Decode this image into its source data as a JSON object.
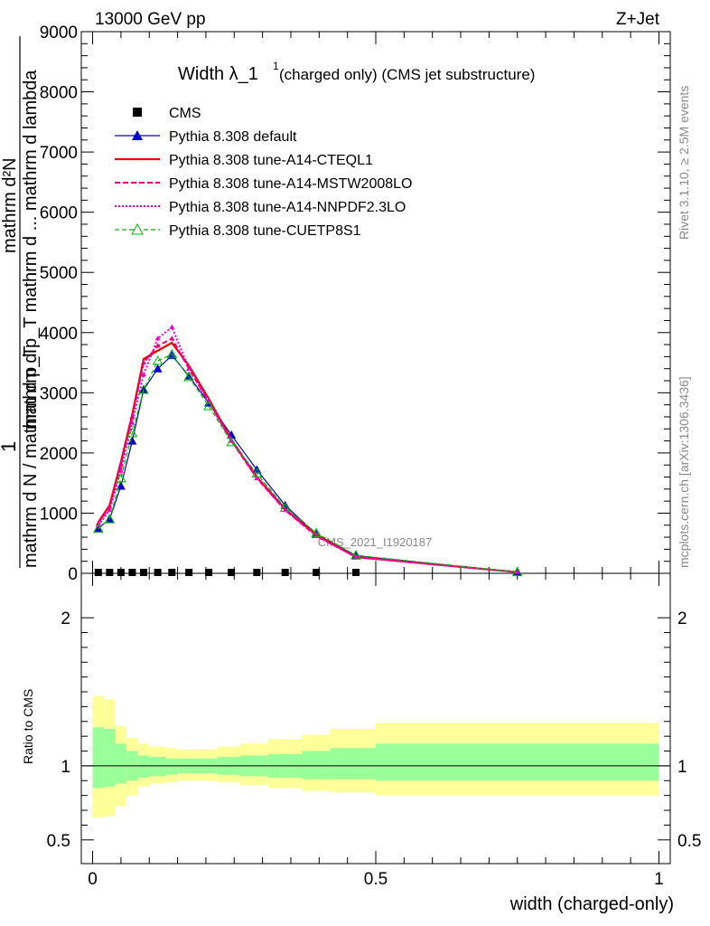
{
  "header": {
    "energy_label": "13000 GeV pp",
    "process_label": "Z+Jet",
    "title_main": "Width λ_1",
    "title_sup": "1",
    "title_rest": " (charged only) (CMS jet substructure)",
    "right_label_top": "Rivet 3.1.10, ≥ 2.5M events",
    "right_label_bottom": "mcplots.cern.ch [arXiv:1306.3436]",
    "watermark": "CMS_2021_I1920187"
  },
  "chart_data": [
    {
      "type": "line",
      "ylabel_numerator": "1",
      "ylabel_numerator_sub": "mathrm d N",
      "ylabel_denominator": "mathrm d p_T mathrm d ... mathrm d lambda",
      "ylabel_top": "mathrm d²N",
      "ylabel_mid": "mathrm d p_T mathrm d ... mathrm d lambda",
      "ylabel_low": "mathrm d N / mathrm d p_T",
      "xlim": [
        -0.02,
        1.02
      ],
      "ylim": [
        0,
        9000
      ],
      "y_ticks": [
        0,
        1000,
        2000,
        3000,
        4000,
        5000,
        6000,
        7000,
        8000,
        9000
      ],
      "y_tick_labels": [
        "0",
        "1000",
        "2000",
        "3000",
        "4000",
        "5000",
        "6000",
        "7000",
        "8000",
        "9000"
      ],
      "legend": [
        "CMS",
        "Pythia 8.308 default",
        "Pythia 8.308 tune-A14-CTEQL1",
        "Pythia 8.308 tune-A14-MSTW2008LO",
        "Pythia 8.308 tune-A14-NNPDF2.3LO",
        "Pythia 8.308 tune-CUETP8S1"
      ],
      "cms_x": [
        0.01,
        0.03,
        0.05,
        0.07,
        0.09,
        0.115,
        0.14,
        0.17,
        0.205,
        0.245,
        0.29,
        0.34,
        0.395,
        0.465
      ],
      "cms_y": [
        15,
        15,
        15,
        15,
        15,
        15,
        15,
        15,
        15,
        15,
        15,
        15,
        15,
        15
      ],
      "series": [
        {
          "name": "Pythia 8.308 default",
          "color": "#0000cc",
          "x": [
            0.01,
            0.03,
            0.05,
            0.07,
            0.09,
            0.115,
            0.14,
            0.17,
            0.205,
            0.245,
            0.29,
            0.34,
            0.395,
            0.465,
            0.75
          ],
          "y": [
            750,
            900,
            1450,
            2200,
            3050,
            3400,
            3620,
            3280,
            2830,
            2300,
            1720,
            1130,
            650,
            290,
            20
          ]
        },
        {
          "name": "Pythia 8.308 tune-A14-CTEQL1",
          "color": "#ee0000",
          "x": [
            0.01,
            0.03,
            0.05,
            0.07,
            0.09,
            0.115,
            0.14,
            0.17,
            0.205,
            0.245,
            0.29,
            0.34,
            0.395,
            0.465,
            0.75
          ],
          "y": [
            850,
            1130,
            1850,
            2640,
            3560,
            3700,
            3830,
            3450,
            2900,
            2220,
            1600,
            1070,
            640,
            270,
            20
          ]
        },
        {
          "name": "Pythia 8.308 tune-A14-MSTW2008LO",
          "color": "#ee0077",
          "x": [
            0.01,
            0.03,
            0.05,
            0.07,
            0.09,
            0.115,
            0.14,
            0.17,
            0.205,
            0.245,
            0.29,
            0.34,
            0.395,
            0.465,
            0.75
          ],
          "y": [
            830,
            1100,
            1800,
            2600,
            3500,
            3780,
            3900,
            3400,
            2850,
            2200,
            1580,
            1050,
            620,
            270,
            20
          ]
        },
        {
          "name": "Pythia 8.308 tune-A14-NNPDF2.3LO",
          "color": "#ee00cc",
          "x": [
            0.01,
            0.03,
            0.05,
            0.07,
            0.09,
            0.115,
            0.14,
            0.17,
            0.205,
            0.245,
            0.29,
            0.34,
            0.395,
            0.465,
            0.75
          ],
          "y": [
            800,
            1050,
            1700,
            2500,
            3300,
            3900,
            4090,
            3400,
            2850,
            2200,
            1580,
            1050,
            620,
            270,
            20
          ]
        },
        {
          "name": "Pythia 8.308 tune-CUETP8S1",
          "color": "#00bb00",
          "x": [
            0.01,
            0.03,
            0.05,
            0.07,
            0.09,
            0.115,
            0.14,
            0.17,
            0.205,
            0.245,
            0.29,
            0.34,
            0.395,
            0.465,
            0.75
          ],
          "y": [
            740,
            900,
            1580,
            2330,
            3050,
            3530,
            3640,
            3260,
            2780,
            2180,
            1660,
            1090,
            670,
            300,
            20
          ]
        }
      ]
    },
    {
      "type": "area",
      "ylabel": "Ratio to CMS",
      "xlabel": "width (charged-only)",
      "xlim": [
        -0.02,
        1.02
      ],
      "ylim": [
        0.34,
        2.3
      ],
      "y_ticks": [
        0.5,
        1,
        2
      ],
      "y_tick_labels": [
        "0.5",
        "1",
        "2"
      ],
      "x_ticks": [
        0,
        0.5,
        1
      ],
      "x_tick_labels": [
        "0",
        "0.5",
        "1"
      ],
      "band_edges": [
        0,
        0.02,
        0.04,
        0.06,
        0.08,
        0.1,
        0.13,
        0.15,
        0.19,
        0.22,
        0.26,
        0.31,
        0.37,
        0.42,
        0.5,
        1.0
      ],
      "yellow_low": [
        0.65,
        0.66,
        0.73,
        0.8,
        0.86,
        0.88,
        0.89,
        0.9,
        0.9,
        0.89,
        0.87,
        0.85,
        0.83,
        0.82,
        0.8
      ],
      "yellow_high": [
        1.47,
        1.45,
        1.27,
        1.19,
        1.15,
        1.13,
        1.12,
        1.11,
        1.11,
        1.13,
        1.15,
        1.18,
        1.21,
        1.25,
        1.29
      ],
      "green_low": [
        0.85,
        0.86,
        0.88,
        0.9,
        0.92,
        0.93,
        0.94,
        0.95,
        0.95,
        0.94,
        0.93,
        0.92,
        0.91,
        0.91,
        0.9
      ],
      "green_high": [
        1.26,
        1.25,
        1.15,
        1.1,
        1.07,
        1.06,
        1.05,
        1.05,
        1.05,
        1.06,
        1.07,
        1.08,
        1.1,
        1.12,
        1.15
      ],
      "reference": 1
    }
  ]
}
